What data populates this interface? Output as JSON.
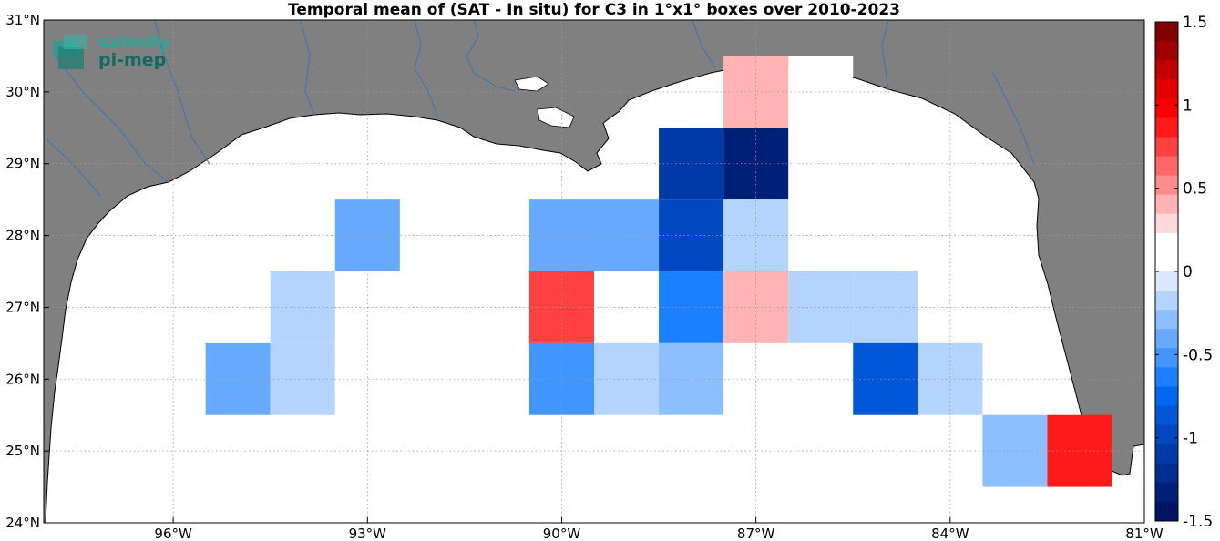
{
  "title": "Temporal mean of (SAT - In situ) for C3 in 1°x1° boxes over 2010-2023",
  "logo": {
    "line1": "salinity",
    "line2": "pi-mep"
  },
  "map": {
    "lon_range": [
      -98.0,
      -81.0
    ],
    "lat_range": [
      24.0,
      31.0
    ],
    "lon_ticks": [
      -96,
      -93,
      -90,
      -87,
      -84,
      -81
    ],
    "lat_ticks": [
      24,
      25,
      26,
      27,
      28,
      29,
      30,
      31
    ],
    "lon_tick_labels": [
      "96°W",
      "93°W",
      "90°W",
      "87°W",
      "84°W",
      "81°W"
    ],
    "lat_tick_labels": [
      "24°N",
      "25°N",
      "26°N",
      "27°N",
      "28°N",
      "29°N",
      "30°N",
      "31°N"
    ],
    "grid": "dotted",
    "colors": {
      "land": "#808080",
      "ocean": "#ffffff",
      "rivers": "#3a78b8"
    }
  },
  "colorbar": {
    "range": [
      -1.5,
      1.5
    ],
    "tick_values": [
      1.5,
      1,
      0.5,
      0,
      -0.5,
      -1,
      -1.5
    ],
    "tick_labels": [
      "1.5",
      "1",
      "0.5",
      "0",
      "-0.5",
      "-1",
      "-1.5"
    ],
    "colors_top_to_bottom": [
      "#800000",
      "#a00000",
      "#c20000",
      "#e20000",
      "#fa0000",
      "#ff1a1a",
      "#ff4040",
      "#ff6666",
      "#ff8c8c",
      "#ffb3b3",
      "#ffd9d9",
      "#ffffff",
      "#ffffff",
      "#d9e9ff",
      "#b3d4ff",
      "#8cbfff",
      "#66aaff",
      "#4095ff",
      "#1a80ff",
      "#0068f0",
      "#0058d8",
      "#0048c0",
      "#003aa8",
      "#002d90",
      "#002078",
      "#001464"
    ]
  },
  "chart_data": {
    "type": "heatmap",
    "title": "Temporal mean of (SAT - In situ) for C3 in 1°x1° boxes over 2010-2023",
    "x_unit": "longitude (degrees)",
    "y_unit": "latitude (degrees)",
    "cell_size_deg": 1,
    "value_range": [
      -1.5,
      1.5
    ],
    "cells": [
      {
        "lon": -87,
        "lat": 30,
        "value": 0.4
      },
      {
        "lon": -86,
        "lat": 30,
        "value": 0.2
      },
      {
        "lon": -88,
        "lat": 29,
        "value": -1.1
      },
      {
        "lon": -87,
        "lat": 29,
        "value": -1.35
      },
      {
        "lon": -93,
        "lat": 28,
        "value": -0.4
      },
      {
        "lon": -90,
        "lat": 28,
        "value": -0.4
      },
      {
        "lon": -89,
        "lat": 28,
        "value": -0.4
      },
      {
        "lon": -88,
        "lat": 28,
        "value": -1.0
      },
      {
        "lon": -87,
        "lat": 28,
        "value": -0.15
      },
      {
        "lon": -94,
        "lat": 27,
        "value": -0.15
      },
      {
        "lon": -90,
        "lat": 27,
        "value": 0.75
      },
      {
        "lon": -88,
        "lat": 27,
        "value": -0.6
      },
      {
        "lon": -87,
        "lat": 27,
        "value": 0.45
      },
      {
        "lon": -86,
        "lat": 27,
        "value": -0.15
      },
      {
        "lon": -85,
        "lat": 27,
        "value": -0.15
      },
      {
        "lon": -95,
        "lat": 26,
        "value": -0.4
      },
      {
        "lon": -94,
        "lat": 26,
        "value": -0.15
      },
      {
        "lon": -93,
        "lat": 26,
        "value": 0.2
      },
      {
        "lon": -90,
        "lat": 26,
        "value": -0.55
      },
      {
        "lon": -89,
        "lat": 26,
        "value": -0.15
      },
      {
        "lon": -88,
        "lat": 26,
        "value": -0.3
      },
      {
        "lon": -85,
        "lat": 26,
        "value": -0.85
      },
      {
        "lon": -84,
        "lat": 26,
        "value": -0.15
      },
      {
        "lon": -91,
        "lat": 25,
        "value": 0.2
      },
      {
        "lon": -86,
        "lat": 25,
        "value": 0.2
      },
      {
        "lon": -83,
        "lat": 25,
        "value": -0.3
      },
      {
        "lon": -82,
        "lat": 25,
        "value": 0.9
      }
    ]
  }
}
